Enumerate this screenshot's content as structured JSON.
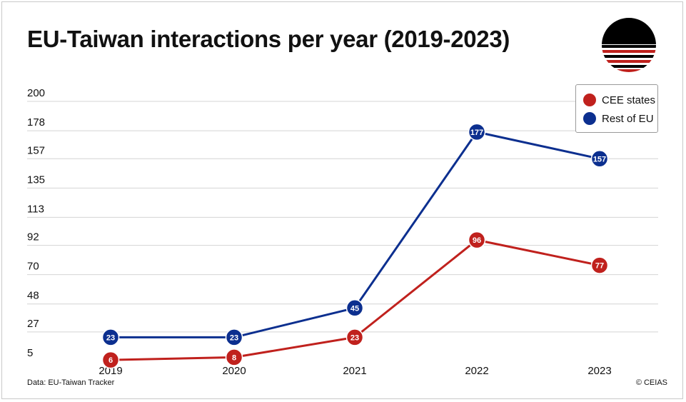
{
  "header": {
    "title": "EU-Taiwan interactions per year (2019-2023)"
  },
  "footer": {
    "source": "Data: EU-Taiwan Tracker",
    "credit": "© CEIAS"
  },
  "colors": {
    "cee": "#c0211d",
    "rest": "#0c2f8f",
    "grid": "#d4d4d4"
  },
  "chart_data": {
    "type": "line",
    "title": "EU-Taiwan interactions per year (2019-2023)",
    "categories": [
      "2019",
      "2020",
      "2021",
      "2022",
      "2023"
    ],
    "y_ticks": [
      "5",
      "27",
      "48",
      "70",
      "92",
      "113",
      "135",
      "157",
      "178",
      "200"
    ],
    "ylim": [
      5,
      200
    ],
    "grid": true,
    "legend_position": "top-right",
    "series": [
      {
        "name": "CEE states",
        "color": "#c0211d",
        "values": [
          6,
          8,
          23,
          96,
          77
        ]
      },
      {
        "name": "Rest of EU",
        "color": "#0c2f8f",
        "values": [
          23,
          23,
          45,
          177,
          157
        ]
      }
    ]
  }
}
